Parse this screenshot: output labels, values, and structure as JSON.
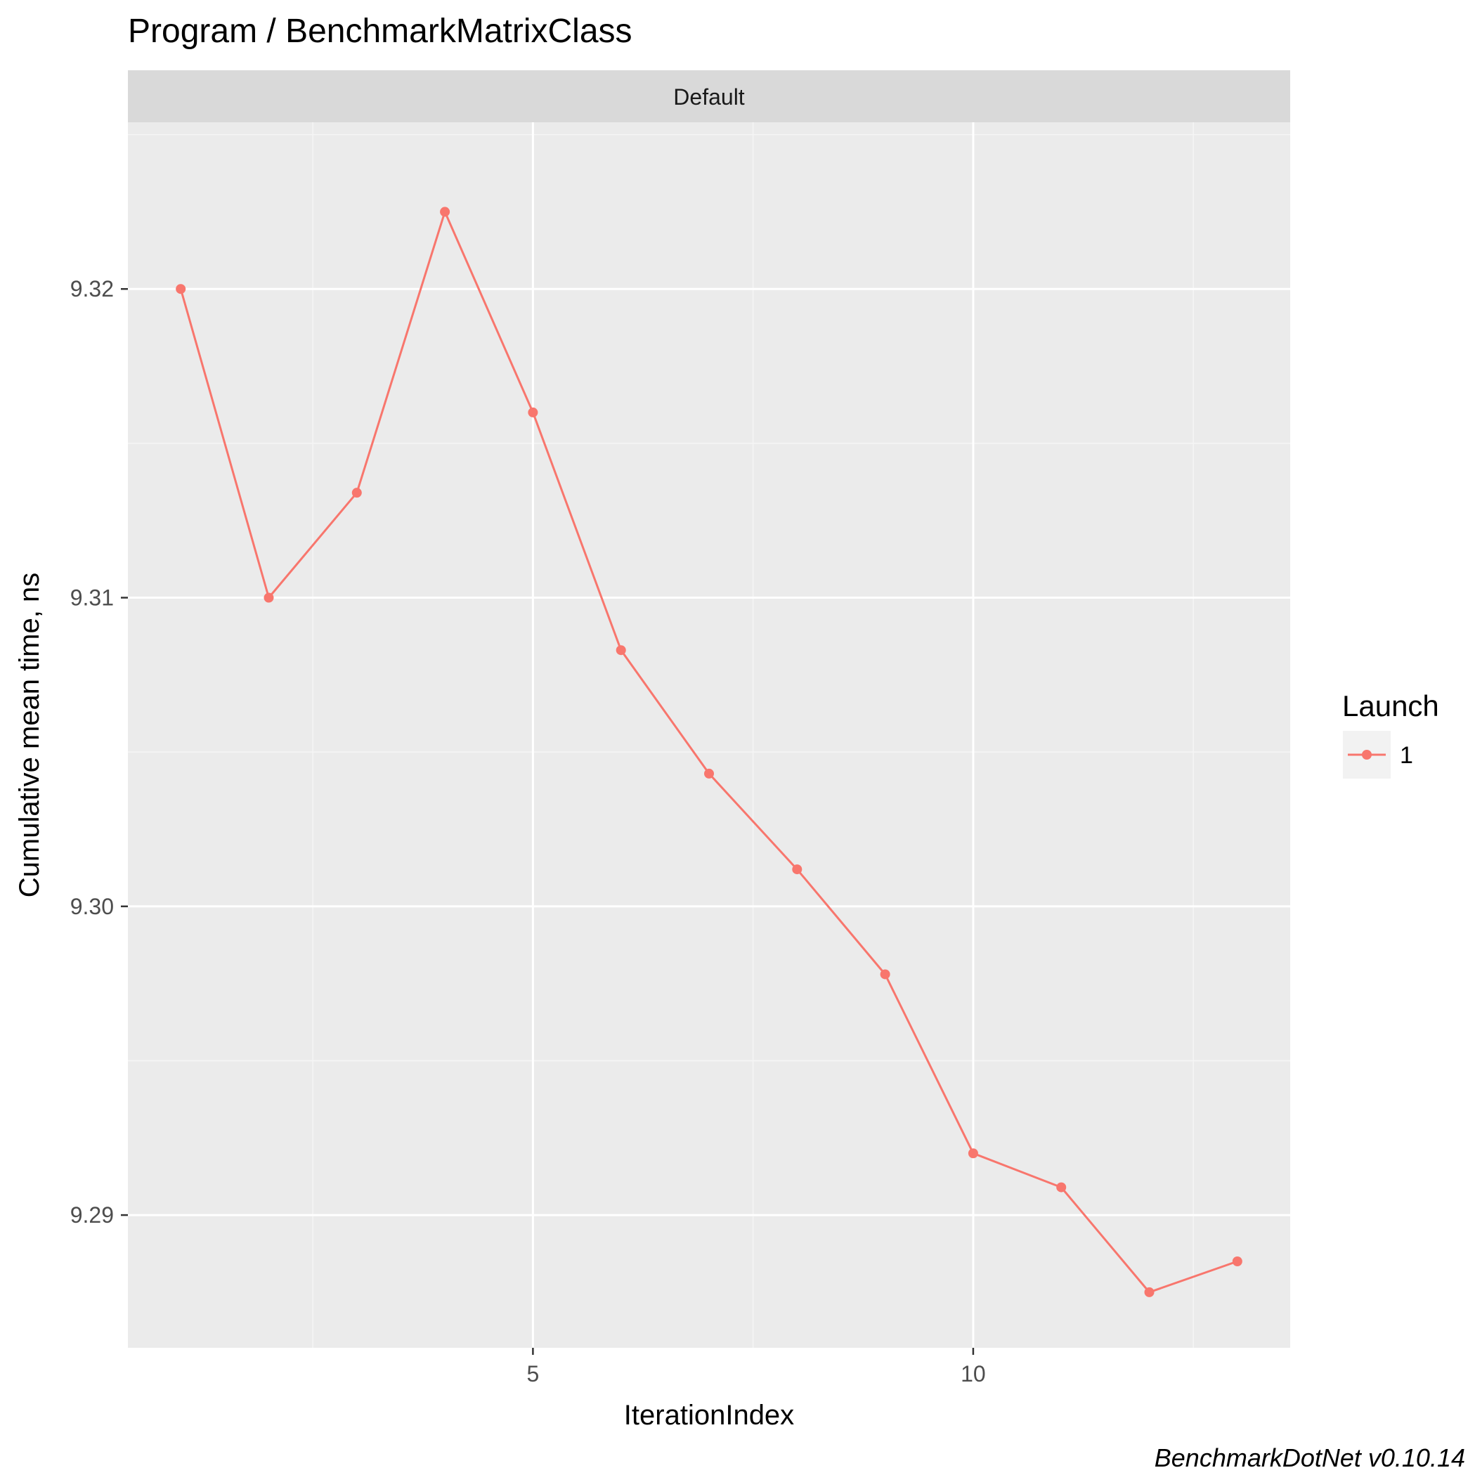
{
  "chart_data": {
    "type": "line",
    "title": "Program / BenchmarkMatrixClass",
    "facet_label": "Default",
    "xlabel": "IterationIndex",
    "ylabel": "Cumulative mean time, ns",
    "caption": "BenchmarkDotNet v0.10.14",
    "xlim": [
      0.4,
      13.6
    ],
    "ylim": [
      9.2857,
      9.3254
    ],
    "x_ticks": [
      5,
      10
    ],
    "x_tick_labels": [
      "5",
      "10"
    ],
    "y_ticks": [
      9.29,
      9.3,
      9.31,
      9.32
    ],
    "y_tick_labels": [
      "9.29",
      "9.30",
      "9.31",
      "9.32"
    ],
    "grid": true,
    "legend": {
      "title": "Launch",
      "position": "right",
      "entries": [
        "1"
      ]
    },
    "series": [
      {
        "name": "1",
        "color": "#f8766d",
        "x": [
          1,
          2,
          3,
          4,
          5,
          6,
          7,
          8,
          9,
          10,
          11,
          12,
          13
        ],
        "y": [
          9.32,
          9.31,
          9.3134,
          9.3225,
          9.316,
          9.3083,
          9.3043,
          9.3012,
          9.2978,
          9.292,
          9.2909,
          9.2875,
          9.2885
        ]
      }
    ]
  },
  "colors": {
    "panel_background": "#ebebeb",
    "strip_background": "#d9d9d9",
    "grid_major": "#ffffff",
    "grid_minor": "#f5f5f5",
    "tick_label": "#4d4d4d",
    "legend_key_background": "#f2f2f2"
  }
}
